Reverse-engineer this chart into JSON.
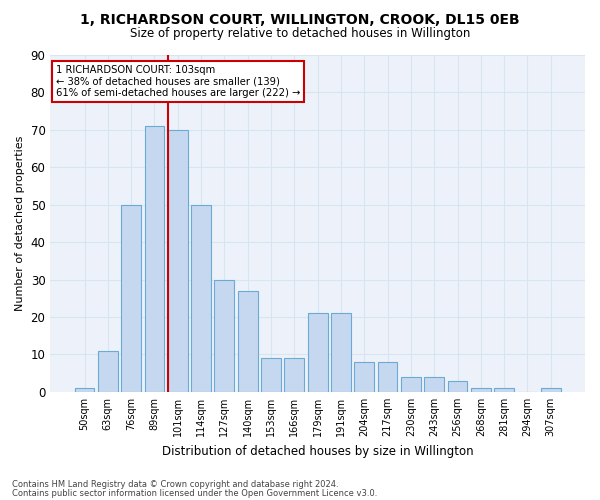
{
  "title": "1, RICHARDSON COURT, WILLINGTON, CROOK, DL15 0EB",
  "subtitle": "Size of property relative to detached houses in Willington",
  "xlabel": "Distribution of detached houses by size in Willington",
  "ylabel": "Number of detached properties",
  "bar_labels": [
    "50sqm",
    "63sqm",
    "76sqm",
    "89sqm",
    "101sqm",
    "114sqm",
    "127sqm",
    "140sqm",
    "153sqm",
    "166sqm",
    "179sqm",
    "191sqm",
    "204sqm",
    "217sqm",
    "230sqm",
    "243sqm",
    "256sqm",
    "268sqm",
    "281sqm",
    "294sqm",
    "307sqm"
  ],
  "bar_values": [
    1,
    11,
    50,
    71,
    70,
    50,
    30,
    27,
    9,
    9,
    21,
    21,
    8,
    8,
    4,
    4,
    3,
    1,
    1,
    0,
    1
  ],
  "bar_color": "#c5d8f0",
  "bar_edgecolor": "#6aaad4",
  "vline_index": 4,
  "vline_color": "#cc0000",
  "marker_label": "1 RICHARDSON COURT: 103sqm",
  "annotation_line1": "← 38% of detached houses are smaller (139)",
  "annotation_line2": "61% of semi-detached houses are larger (222) →",
  "annotation_border_color": "#cc0000",
  "ylim": [
    0,
    90
  ],
  "yticks": [
    0,
    10,
    20,
    30,
    40,
    50,
    60,
    70,
    80,
    90
  ],
  "grid_color": "#d8e4f0",
  "bg_color": "#edf2fa",
  "footnote1": "Contains HM Land Registry data © Crown copyright and database right 2024.",
  "footnote2": "Contains public sector information licensed under the Open Government Licence v3.0."
}
